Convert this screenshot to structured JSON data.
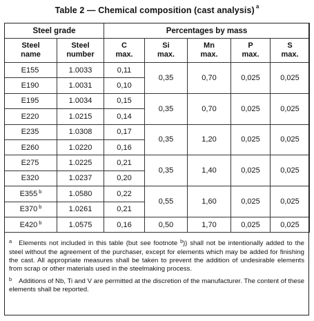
{
  "title": "Table 2 — Chemical composition (cast analysis)",
  "title_note": "a",
  "headers": {
    "steel_grade": "Steel grade",
    "percentages": "Percentages by mass",
    "steel_name": [
      "Steel",
      "name"
    ],
    "steel_number": [
      "Steel",
      "number"
    ],
    "c": [
      "C",
      "max."
    ],
    "si": [
      "Si",
      "max."
    ],
    "mn": [
      "Mn",
      "max."
    ],
    "p": [
      "P",
      "max."
    ],
    "s": [
      "S",
      "max."
    ]
  },
  "rows": [
    {
      "name": "E155",
      "note": "",
      "number": "1.0033",
      "c": "0,11"
    },
    {
      "name": "E190",
      "note": "",
      "number": "1.0031",
      "c": "0,10"
    },
    {
      "name": "E195",
      "note": "",
      "number": "1.0034",
      "c": "0,15"
    },
    {
      "name": "E220",
      "note": "",
      "number": "1.0215",
      "c": "0,14"
    },
    {
      "name": "E235",
      "note": "",
      "number": "1.0308",
      "c": "0,17"
    },
    {
      "name": "E260",
      "note": "",
      "number": "1.0220",
      "c": "0,16"
    },
    {
      "name": "E275",
      "note": "",
      "number": "1.0225",
      "c": "0,21"
    },
    {
      "name": "E320",
      "note": "",
      "number": "1.0237",
      "c": "0,20"
    },
    {
      "name": "E355",
      "note": "b",
      "number": "1.0580",
      "c": "0,22"
    },
    {
      "name": "E370",
      "note": "b",
      "number": "1.0261",
      "c": "0,21"
    },
    {
      "name": "E420",
      "note": "b",
      "number": "1.0575",
      "c": "0,16"
    }
  ],
  "groups": [
    {
      "si": "0,35",
      "mn": "0,70",
      "p": "0,025",
      "s": "0,025"
    },
    {
      "si": "0,35",
      "mn": "0,70",
      "p": "0,025",
      "s": "0,025"
    },
    {
      "si": "0,35",
      "mn": "1,20",
      "p": "0,025",
      "s": "0,025"
    },
    {
      "si": "0,35",
      "mn": "1,40",
      "p": "0,025",
      "s": "0,025"
    },
    {
      "si": "0,55",
      "mn": "1,60",
      "p": "0,025",
      "s": "0,025"
    },
    {
      "si": "0,50",
      "mn": "1,70",
      "p": "0,025",
      "s": "0,025"
    }
  ],
  "footnotes": {
    "a_marker": "a",
    "a_text_1": "Elements not included in this table (but see footnote ",
    "a_ref": "b",
    "a_text_2": ")) shall not be intentionally added to the steel without the agreement of the purchaser, except for elements which may be added for finishing the cast. All appropriate measures shall be taken to prevent the addition of undesirable elements from scrap or other materials used in the steelmaking process.",
    "b_marker": "b",
    "b_text": "Additions of Nb, Ti and V are permitted at the discretion of the manufacturer. The content of these elements shall be reported."
  }
}
